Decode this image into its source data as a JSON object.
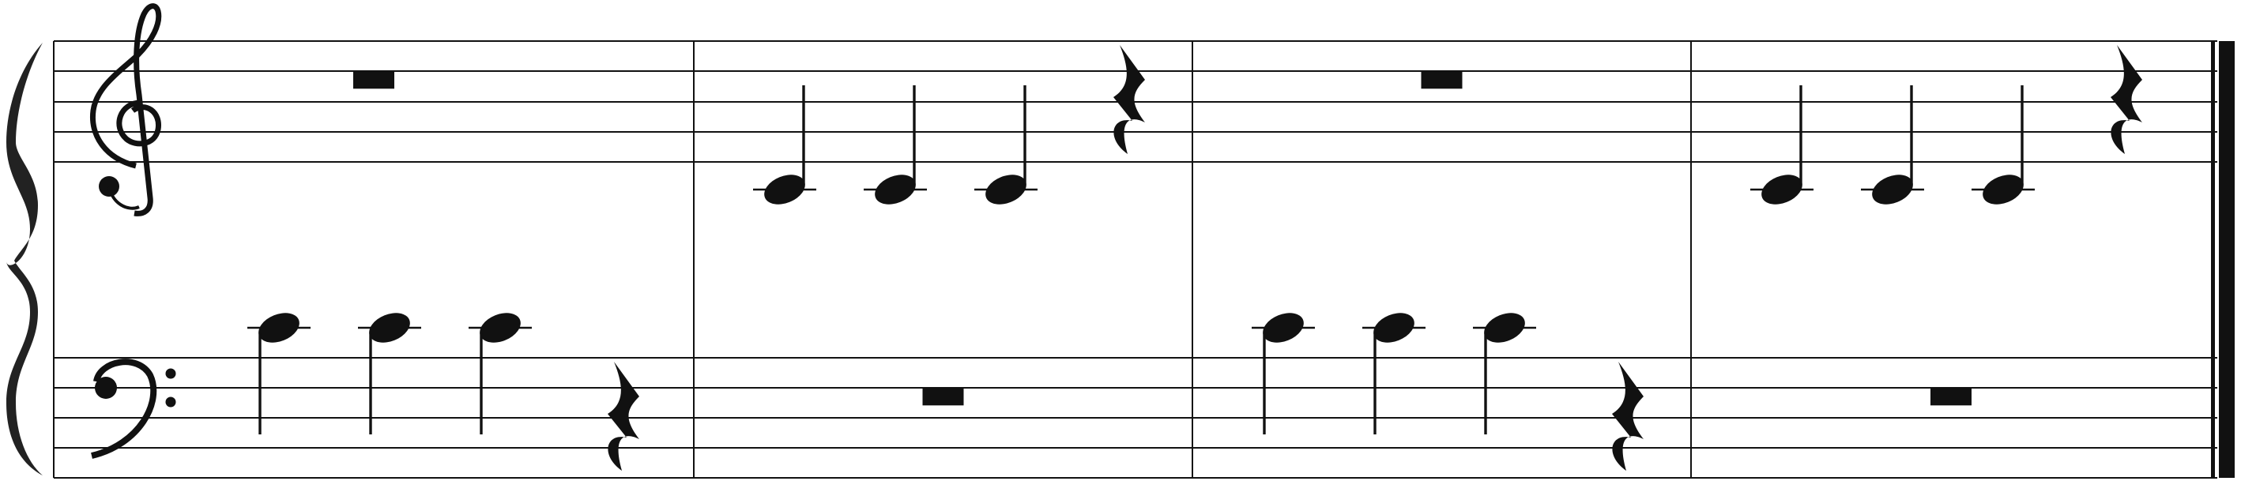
{
  "score": {
    "system": "grand-staff",
    "time_signature_shown": false,
    "staves": [
      {
        "name": "treble",
        "clef": "treble-clef-icon"
      },
      {
        "name": "bass",
        "clef": "bass-clef-icon"
      }
    ],
    "measures": [
      {
        "number": 1,
        "treble": [
          {
            "kind": "whole-measure-rest"
          }
        ],
        "bass": [
          {
            "kind": "quarter-note",
            "pitch": "C4",
            "stem": "down"
          },
          {
            "kind": "quarter-note",
            "pitch": "C4",
            "stem": "down"
          },
          {
            "kind": "quarter-note",
            "pitch": "C4",
            "stem": "down"
          },
          {
            "kind": "quarter-rest"
          }
        ]
      },
      {
        "number": 2,
        "treble": [
          {
            "kind": "quarter-note",
            "pitch": "C4",
            "stem": "up"
          },
          {
            "kind": "quarter-note",
            "pitch": "C4",
            "stem": "up"
          },
          {
            "kind": "quarter-note",
            "pitch": "C4",
            "stem": "up"
          },
          {
            "kind": "quarter-rest"
          }
        ],
        "bass": [
          {
            "kind": "whole-measure-rest"
          }
        ]
      },
      {
        "number": 3,
        "treble": [
          {
            "kind": "whole-measure-rest"
          }
        ],
        "bass": [
          {
            "kind": "quarter-note",
            "pitch": "C4",
            "stem": "down"
          },
          {
            "kind": "quarter-note",
            "pitch": "C4",
            "stem": "down"
          },
          {
            "kind": "quarter-note",
            "pitch": "C4",
            "stem": "down"
          },
          {
            "kind": "quarter-rest"
          }
        ]
      },
      {
        "number": 4,
        "treble": [
          {
            "kind": "quarter-note",
            "pitch": "C4",
            "stem": "up"
          },
          {
            "kind": "quarter-note",
            "pitch": "C4",
            "stem": "up"
          },
          {
            "kind": "quarter-note",
            "pitch": "C4",
            "stem": "up"
          },
          {
            "kind": "quarter-rest"
          }
        ],
        "bass": [
          {
            "kind": "whole-measure-rest"
          }
        ]
      }
    ],
    "final_barline": "double-thick"
  }
}
